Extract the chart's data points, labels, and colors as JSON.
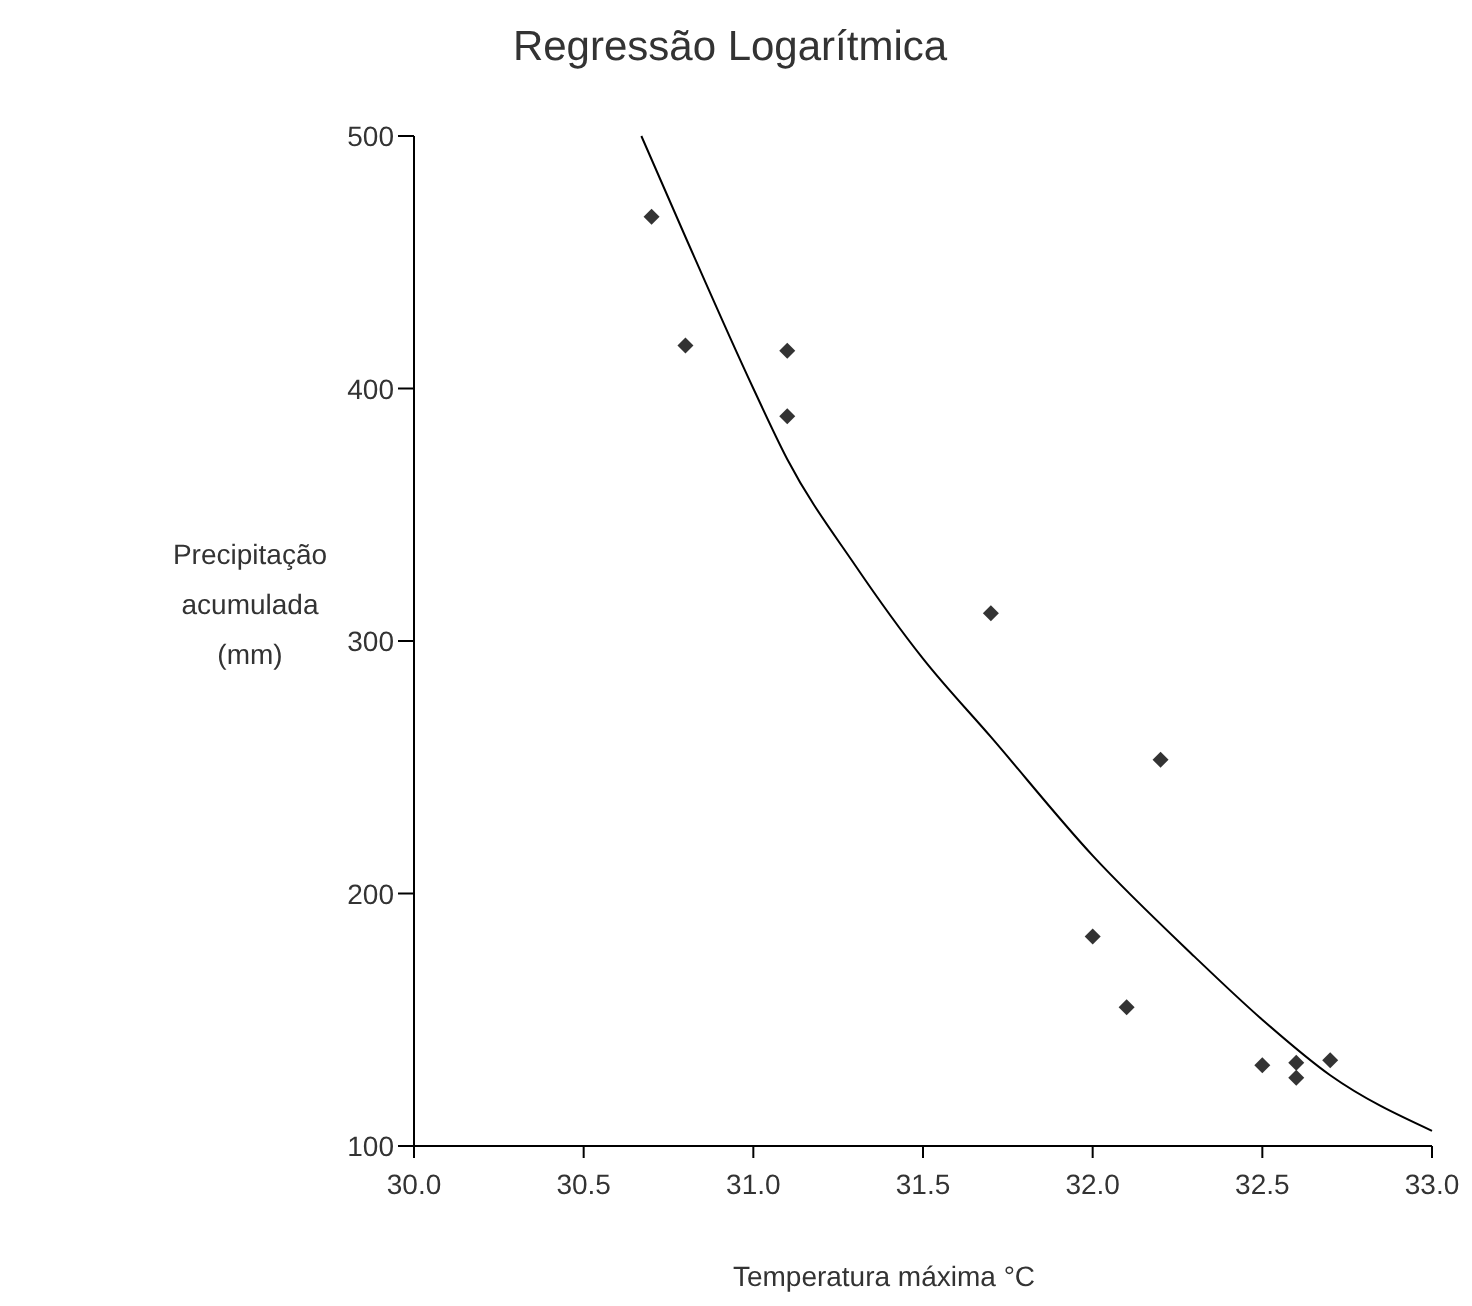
{
  "chart_data": {
    "type": "scatter",
    "title": "Regressão Logarítmica",
    "xlabel": "Temperatura máxima °C",
    "ylabel": "Precipitação acumulada (mm)",
    "xlim": [
      30.0,
      33.0
    ],
    "xticks": [
      {
        "value": 30,
        "label": "30.0"
      },
      30.5,
      {
        "value": 31,
        "label": "31.0"
      },
      31.5,
      {
        "value": 32,
        "label": "32.0"
      },
      32.5,
      {
        "value": 33,
        "label": "33.0"
      }
    ],
    "ylim": [
      100,
      500
    ],
    "yticks": [
      100,
      200,
      300,
      400,
      500
    ],
    "grid": false,
    "marker": "diamond",
    "series": [
      {
        "color": "#333333",
        "x": [
          30.7,
          30.8,
          31.1,
          31.1,
          31.7,
          32.0,
          32.1,
          32.2,
          32.5,
          32.6,
          32.6,
          32.7
        ],
        "values": [
          468,
          417,
          415,
          389,
          311,
          183,
          155,
          253,
          132,
          133,
          127,
          134
        ]
      },
      {
        "type": "line",
        "color": "#000000",
        "marker": "none",
        "x": [
          30.67,
          30.8,
          31.0,
          31.1,
          31.3,
          31.5,
          31.7,
          32.0,
          32.3,
          32.5,
          32.7,
          33.0
        ],
        "values": [
          500,
          460,
          400,
          372,
          330,
          293,
          262,
          215,
          175,
          150,
          128,
          106
        ]
      }
    ]
  }
}
